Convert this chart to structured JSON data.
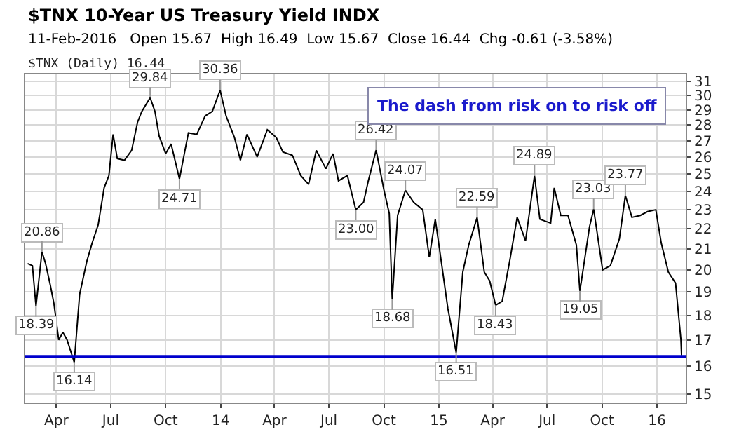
{
  "chart_data": {
    "type": "line",
    "title": "$TNX 10-Year US Treasury Yield INDX",
    "subtitle": "11-Feb-2016   Open 15.67  High 16.49  Low 15.67  Close 16.44  Chg -0.61 (-3.58%)",
    "x": [
      "2013-02-12",
      "2013-02-20",
      "2013-02-26",
      "2013-03-08",
      "2013-03-14",
      "2013-03-22",
      "2013-03-28",
      "2013-04-05",
      "2013-04-12",
      "2013-04-19",
      "2013-05-01",
      "2013-05-10",
      "2013-05-22",
      "2013-05-31",
      "2013-06-10",
      "2013-06-20",
      "2013-06-28",
      "2013-07-05",
      "2013-07-12",
      "2013-07-24",
      "2013-08-05",
      "2013-08-15",
      "2013-08-22",
      "2013-09-05",
      "2013-09-13",
      "2013-09-20",
      "2013-10-01",
      "2013-10-10",
      "2013-10-24",
      "2013-11-08",
      "2013-11-22",
      "2013-12-06",
      "2013-12-18",
      "2013-12-31",
      "2014-01-10",
      "2014-01-24",
      "2014-02-03",
      "2014-02-14",
      "2014-03-03",
      "2014-03-20",
      "2014-04-04",
      "2014-04-15",
      "2014-05-01",
      "2014-05-15",
      "2014-05-28",
      "2014-06-10",
      "2014-06-26",
      "2014-07-08",
      "2014-07-17",
      "2014-08-01",
      "2014-08-15",
      "2014-08-28",
      "2014-09-05",
      "2014-09-18",
      "2014-10-01",
      "2014-10-10",
      "2014-10-15",
      "2014-10-24",
      "2014-11-06",
      "2014-11-20",
      "2014-12-05",
      "2014-12-16",
      "2014-12-26",
      "2015-01-05",
      "2015-01-16",
      "2015-01-30",
      "2015-02-10",
      "2015-02-20",
      "2015-03-06",
      "2015-03-18",
      "2015-03-27",
      "2015-04-06",
      "2015-04-17",
      "2015-04-30",
      "2015-05-12",
      "2015-05-26",
      "2015-06-10",
      "2015-06-19",
      "2015-07-07",
      "2015-07-13",
      "2015-07-24",
      "2015-08-05",
      "2015-08-19",
      "2015-08-25",
      "2015-09-10",
      "2015-09-17",
      "2015-10-02",
      "2015-10-15",
      "2015-10-30",
      "2015-11-09",
      "2015-11-20",
      "2015-12-04",
      "2015-12-16",
      "2015-12-30",
      "2016-01-08",
      "2016-01-20",
      "2016-02-01",
      "2016-02-10",
      "2016-02-11"
    ],
    "series": [
      {
        "color": "#000000",
        "values": [
          20.3,
          20.2,
          18.39,
          20.86,
          20.3,
          19.3,
          18.5,
          17.0,
          17.3,
          17.0,
          16.14,
          18.9,
          20.4,
          21.3,
          22.2,
          24.2,
          24.9,
          27.4,
          25.9,
          25.8,
          26.4,
          28.2,
          28.9,
          29.84,
          28.9,
          27.3,
          26.2,
          26.8,
          24.71,
          27.5,
          27.4,
          28.6,
          28.9,
          30.36,
          28.6,
          27.2,
          25.8,
          27.4,
          26.0,
          27.7,
          27.2,
          26.3,
          26.1,
          24.9,
          24.4,
          26.4,
          25.3,
          26.2,
          24.6,
          24.9,
          23.0,
          23.4,
          24.6,
          26.42,
          24.1,
          22.8,
          18.68,
          22.7,
          24.07,
          23.4,
          23.0,
          20.6,
          22.5,
          20.4,
          18.3,
          16.51,
          19.9,
          21.2,
          22.59,
          19.9,
          19.5,
          18.43,
          18.6,
          20.5,
          22.6,
          21.4,
          24.89,
          22.5,
          22.3,
          24.2,
          22.7,
          22.7,
          21.2,
          19.05,
          22.1,
          23.03,
          20.0,
          20.2,
          21.5,
          23.77,
          22.6,
          22.7,
          22.9,
          23.0,
          21.3,
          19.9,
          19.4,
          17.0,
          16.4
        ]
      }
    ],
    "xlim": [
      "2013-02-08",
      "2016-02-18"
    ],
    "xticks": [
      {
        "value": "2013-04-01",
        "label": "Apr"
      },
      {
        "value": "2013-07-01",
        "label": "Jul"
      },
      {
        "value": "2013-10-01",
        "label": "Oct"
      },
      {
        "value": "2014-01-01",
        "label": "14"
      },
      {
        "value": "2014-04-01",
        "label": "Apr"
      },
      {
        "value": "2014-07-01",
        "label": "Jul"
      },
      {
        "value": "2014-10-01",
        "label": "Oct"
      },
      {
        "value": "2015-01-01",
        "label": "15"
      },
      {
        "value": "2015-04-01",
        "label": "Apr"
      },
      {
        "value": "2015-07-01",
        "label": "Jul"
      },
      {
        "value": "2015-10-01",
        "label": "Oct"
      },
      {
        "value": "2016-01-01",
        "label": "16"
      }
    ],
    "ylim": [
      14.7,
      31.5
    ],
    "yticks": [
      15,
      16,
      17,
      18,
      19,
      20,
      21,
      22,
      23,
      24,
      25,
      26,
      27,
      28,
      29,
      30,
      31
    ],
    "log": true,
    "grid": true,
    "ref_lines": [
      {
        "axis": "y",
        "value": 16.36,
        "color": "#0000cc"
      }
    ],
    "annotations": [
      "$TNX (Daily) 16.44",
      "The dash from risk on to risk off",
      {
        "text": "20.86",
        "x": "2013-03-08",
        "y": 20.86
      },
      {
        "text": "18.39",
        "x": "2013-02-26",
        "y": 18.39
      },
      {
        "text": "16.14",
        "x": "2013-05-01",
        "y": 16.14
      },
      {
        "text": "29.84",
        "x": "2013-09-05",
        "y": 29.84
      },
      {
        "text": "24.71",
        "x": "2013-10-24",
        "y": 24.71
      },
      {
        "text": "30.36",
        "x": "2013-12-31",
        "y": 30.36
      },
      {
        "text": "23.00",
        "x": "2014-08-15",
        "y": 23.0
      },
      {
        "text": "26.42",
        "x": "2014-09-18",
        "y": 26.42
      },
      {
        "text": "18.68",
        "x": "2014-10-15",
        "y": 18.68
      },
      {
        "text": "24.07",
        "x": "2014-11-06",
        "y": 24.07
      },
      {
        "text": "16.51",
        "x": "2015-01-30",
        "y": 16.51
      },
      {
        "text": "22.59",
        "x": "2015-03-06",
        "y": 22.59
      },
      {
        "text": "18.43",
        "x": "2015-04-06",
        "y": 18.43
      },
      {
        "text": "24.89",
        "x": "2015-06-10",
        "y": 24.89
      },
      {
        "text": "19.05",
        "x": "2015-08-25",
        "y": 19.05
      },
      {
        "text": "23.03",
        "x": "2015-09-17",
        "y": 23.03
      },
      {
        "text": "23.77",
        "x": "2015-11-09",
        "y": 23.77
      }
    ]
  }
}
